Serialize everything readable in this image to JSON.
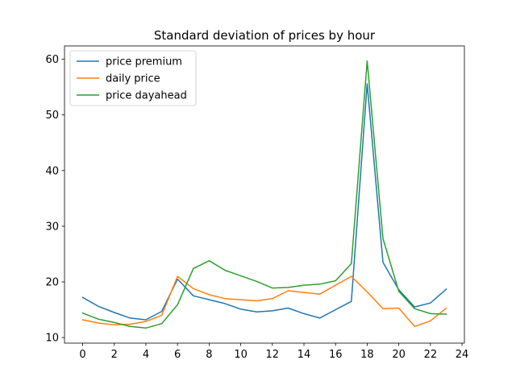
{
  "chart_data": {
    "type": "line",
    "title": "Standard deviation of prices by hour",
    "xlabel": "",
    "ylabel": "",
    "xlim": [
      -1.15,
      24.15
    ],
    "ylim": [
      9.0,
      62.4
    ],
    "xticks": [
      0,
      2,
      4,
      6,
      8,
      10,
      12,
      14,
      16,
      18,
      20,
      22,
      24
    ],
    "yticks": [
      10,
      20,
      30,
      40,
      50,
      60
    ],
    "grid": false,
    "legend_position": "upper-left",
    "x": [
      0,
      1,
      2,
      3,
      4,
      5,
      6,
      7,
      8,
      9,
      10,
      11,
      12,
      13,
      14,
      15,
      16,
      17,
      18,
      19,
      20,
      21,
      22,
      23
    ],
    "series": [
      {
        "name": "price premium",
        "color": "#1f77b4",
        "values": [
          17.2,
          15.6,
          14.5,
          13.5,
          13.2,
          14.7,
          20.5,
          17.5,
          16.8,
          16.1,
          15.1,
          14.6,
          14.8,
          15.3,
          14.3,
          13.5,
          15.0,
          16.5,
          55.6,
          23.5,
          18.6,
          15.5,
          16.2,
          18.7
        ]
      },
      {
        "name": "daily price",
        "color": "#ff7f0e",
        "values": [
          13.2,
          12.6,
          12.3,
          12.4,
          12.9,
          14.0,
          21.0,
          18.8,
          17.7,
          17.0,
          16.8,
          16.6,
          17.0,
          18.4,
          18.1,
          17.8,
          19.4,
          21.0,
          18.2,
          15.2,
          15.3,
          12.0,
          13.0,
          15.3
        ]
      },
      {
        "name": "price dayahead",
        "color": "#2ca02c",
        "values": [
          14.4,
          13.3,
          12.7,
          12.0,
          11.7,
          12.5,
          15.9,
          22.4,
          23.8,
          22.1,
          21.1,
          20.1,
          18.9,
          19.0,
          19.4,
          19.6,
          20.2,
          23.3,
          59.7,
          27.8,
          18.3,
          15.2,
          14.3,
          14.2
        ]
      }
    ]
  }
}
